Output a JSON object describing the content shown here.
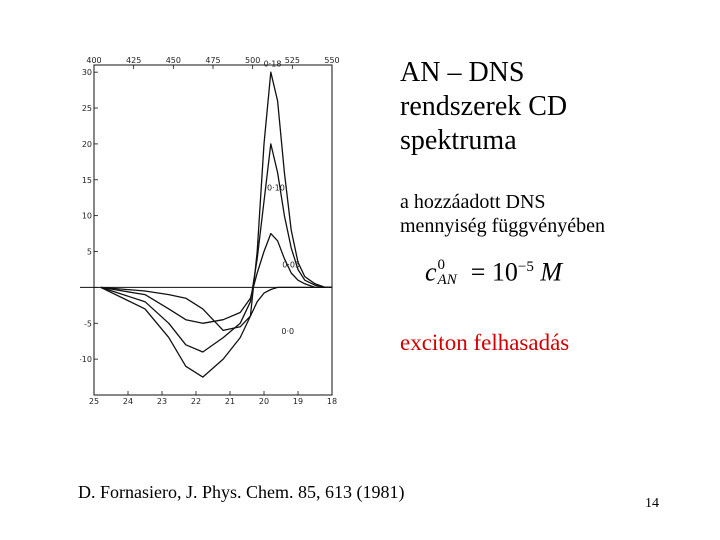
{
  "slide": {
    "title_lines": [
      "AN – DNS",
      "rendszerek CD",
      "spektruma"
    ],
    "subtitle_lines": [
      "a hozzáadott DNS",
      "mennyiség függvényében"
    ],
    "formula": {
      "symbol": "c",
      "superscript": "0",
      "subscript": "AN",
      "equals": "=",
      "base": "10",
      "exponent": "−5",
      "unit": "M"
    },
    "highlight": "exciton felhasadás",
    "citation": "D. Fornasiero, J. Phys. Chem. 85, 613 (1981)",
    "page_number": "14"
  },
  "chart_data": {
    "type": "line",
    "title": "",
    "xlabel": "",
    "ylabel": "",
    "x_top_ticks": [
      "400",
      "425",
      "450",
      "475",
      "500",
      "525",
      "550"
    ],
    "x_bottom_ticks": [
      "25",
      "24",
      "23",
      "22",
      "21",
      "20",
      "19",
      "18"
    ],
    "y_ticks": [
      "30",
      "25",
      "20",
      "15",
      "10",
      "5",
      "",
      "-5",
      "-10"
    ],
    "xlim": [
      25,
      18
    ],
    "ylim": [
      -15,
      31
    ],
    "series": [
      {
        "name": "0·18",
        "x": [
          24.8,
          23.5,
          22.8,
          22.3,
          21.8,
          21.2,
          20.7,
          20.4,
          20.2,
          20.0,
          19.8,
          19.6,
          19.4,
          19.2,
          19.0,
          18.8,
          18.5,
          18.2,
          18.0
        ],
        "y": [
          0,
          -3,
          -7,
          -11,
          -12.5,
          -10,
          -7,
          -4,
          5,
          20,
          30,
          26,
          16,
          8,
          3.5,
          1.5,
          0.5,
          0,
          0
        ]
      },
      {
        "name": "0·10",
        "x": [
          24.8,
          23.5,
          22.8,
          22.3,
          21.8,
          21.2,
          20.7,
          20.4,
          20.2,
          20.0,
          19.8,
          19.6,
          19.4,
          19.2,
          19.0,
          18.8,
          18.5,
          18.2,
          18.0
        ],
        "y": [
          0,
          -2,
          -5,
          -8,
          -9,
          -7,
          -5,
          -2,
          4,
          12,
          20,
          16,
          10,
          5.5,
          2.5,
          1,
          0.3,
          0,
          0
        ]
      },
      {
        "name": "0·05",
        "x": [
          24.8,
          23.5,
          22.8,
          22.3,
          21.8,
          21.2,
          20.7,
          20.4,
          20.2,
          20.0,
          19.8,
          19.6,
          19.4,
          19.2,
          19.0,
          18.8,
          18.5,
          18.2,
          18.0
        ],
        "y": [
          0,
          -1,
          -3,
          -4.5,
          -5,
          -4.5,
          -3.5,
          -1.5,
          2,
          5,
          7.5,
          6.5,
          4,
          2,
          1,
          0.5,
          0,
          0,
          0
        ]
      },
      {
        "name": "0·0",
        "x": [
          24.8,
          23.5,
          22.8,
          22.3,
          21.8,
          21.2,
          20.7,
          20.4,
          20.2,
          20.0,
          19.8,
          19.6,
          19.4,
          19.2,
          19.0,
          18.8,
          18.5,
          18.2,
          18.0
        ],
        "y": [
          0,
          -0.5,
          -1,
          -1.5,
          -3,
          -6,
          -5.5,
          -4,
          -2,
          -0.8,
          -0.3,
          0,
          0,
          0,
          0,
          0,
          0,
          0,
          0
        ]
      }
    ],
    "grid": false,
    "legend": "none"
  }
}
